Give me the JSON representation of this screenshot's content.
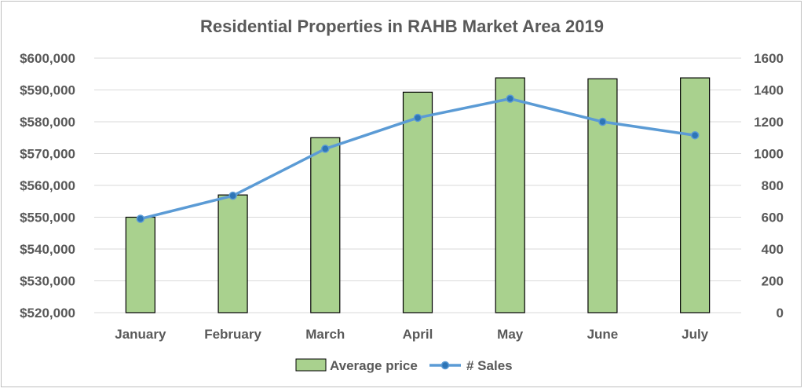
{
  "chart_data": {
    "type": "bar",
    "title": "Residential Properties in RAHB Market Area 2019",
    "categories": [
      "January",
      "February",
      "March",
      "April",
      "May",
      "June",
      "July"
    ],
    "series": [
      {
        "name": "Average price",
        "type": "bar",
        "axis": "left",
        "color": "#a9d18e",
        "values": [
          550000,
          557000,
          575000,
          589300,
          593800,
          593500,
          593800
        ]
      },
      {
        "name": "# Sales",
        "type": "line",
        "axis": "right",
        "color": "#5b9bd5",
        "values": [
          590,
          735,
          1030,
          1225,
          1345,
          1200,
          1115
        ]
      }
    ],
    "y_left": {
      "min": 520000,
      "max": 600000,
      "step": 10000,
      "tick_labels": [
        "$520,000",
        "$530,000",
        "$540,000",
        "$550,000",
        "$560,000",
        "$570,000",
        "$580,000",
        "$590,000",
        "$600,000"
      ]
    },
    "y_right": {
      "min": 0,
      "max": 1600,
      "step": 200,
      "tick_labels": [
        "0",
        "200",
        "400",
        "600",
        "800",
        "1000",
        "1200",
        "1400",
        "1600"
      ]
    },
    "grid": true,
    "legend": "bottom-center"
  }
}
